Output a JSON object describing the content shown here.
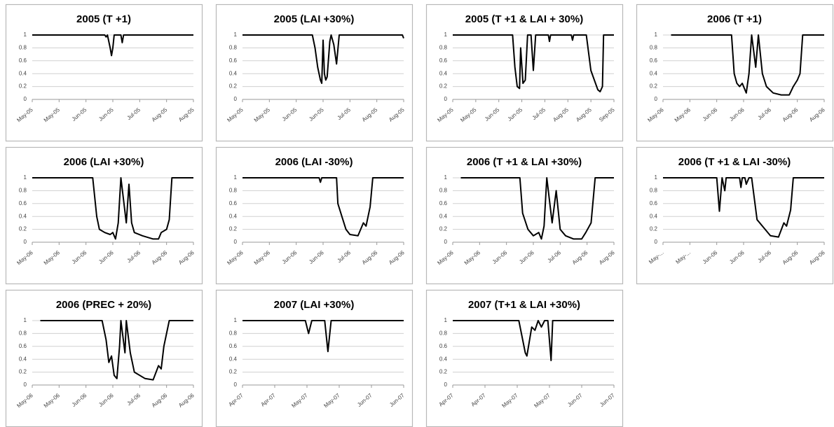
{
  "chart_data": [
    {
      "type": "line",
      "title": "2005 (T +1)",
      "color": "#000000",
      "grid": true,
      "ylim": [
        0,
        1
      ],
      "yticks": [
        0,
        0.2,
        0.4,
        0.6,
        0.8,
        1
      ],
      "xlim": [
        0,
        6
      ],
      "xticks": [
        {
          "value": 0,
          "label": "May-05"
        },
        {
          "value": 1,
          "label": "May-05"
        },
        {
          "value": 2,
          "label": "Jun-05"
        },
        {
          "value": 3,
          "label": "Jun-05"
        },
        {
          "value": 4,
          "label": "Jul-05"
        },
        {
          "value": 5,
          "label": "Aug-05"
        },
        {
          "value": 6,
          "label": "Aug-05"
        }
      ],
      "x": [
        0,
        2.7,
        2.75,
        2.8,
        2.9,
        2.95,
        3.0,
        3.05,
        3.3,
        3.35,
        3.4,
        6
      ],
      "values": [
        1,
        1,
        0.97,
        1,
        0.8,
        0.68,
        0.8,
        1,
        1,
        0.88,
        1,
        1
      ]
    },
    {
      "type": "line",
      "title": "2005 (LAI +30%)",
      "color": "#000000",
      "grid": true,
      "ylim": [
        0,
        1
      ],
      "yticks": [
        0,
        0.2,
        0.4,
        0.6,
        0.8,
        1
      ],
      "xlim": [
        0,
        6
      ],
      "xticks": [
        {
          "value": 0,
          "label": "May-05"
        },
        {
          "value": 1,
          "label": "May-05"
        },
        {
          "value": 2,
          "label": "Jun-05"
        },
        {
          "value": 3,
          "label": "Jun-05"
        },
        {
          "value": 4,
          "label": "Jul-05"
        },
        {
          "value": 5,
          "label": "Aug-05"
        },
        {
          "value": 6,
          "label": "Aug-05"
        }
      ],
      "x": [
        0,
        2.6,
        2.7,
        2.8,
        2.9,
        2.95,
        3.0,
        3.05,
        3.1,
        3.15,
        3.25,
        3.3,
        3.4,
        3.5,
        3.6,
        5.95,
        6
      ],
      "values": [
        1,
        1,
        0.8,
        0.5,
        0.3,
        0.25,
        0.92,
        0.4,
        0.3,
        0.35,
        0.9,
        1,
        0.85,
        0.55,
        1,
        1,
        0.95
      ]
    },
    {
      "type": "line",
      "title": "2005 (T +1 & LAI + 30%)",
      "color": "#000000",
      "grid": true,
      "ylim": [
        0,
        1
      ],
      "yticks": [
        0,
        0.2,
        0.4,
        0.6,
        0.8,
        1
      ],
      "xlim": [
        0,
        7
      ],
      "xticks": [
        {
          "value": 0,
          "label": "May-05"
        },
        {
          "value": 1,
          "label": "May-05"
        },
        {
          "value": 2,
          "label": "Jun-05"
        },
        {
          "value": 3,
          "label": "Jun-05"
        },
        {
          "value": 4,
          "label": "Jul-05"
        },
        {
          "value": 5,
          "label": "Aug-05"
        },
        {
          "value": 6,
          "label": "Aug-05"
        },
        {
          "value": 7,
          "label": "Sep-05"
        }
      ],
      "x": [
        0,
        2.6,
        2.7,
        2.8,
        2.9,
        2.95,
        3.05,
        3.15,
        3.25,
        3.4,
        3.5,
        3.6,
        4.15,
        4.2,
        4.25,
        5.15,
        5.2,
        5.25,
        5.8,
        6.0,
        6.3,
        6.4,
        6.5,
        6.55,
        7
      ],
      "values": [
        1,
        1,
        0.5,
        0.2,
        0.17,
        0.8,
        0.25,
        0.3,
        1,
        1,
        0.45,
        1,
        1,
        0.9,
        1,
        1,
        0.92,
        1,
        1,
        0.45,
        0.15,
        0.12,
        0.2,
        1,
        1
      ]
    },
    {
      "type": "line",
      "title": "2006 (T +1)",
      "color": "#000000",
      "grid": true,
      "ylim": [
        0,
        1
      ],
      "yticks": [
        0,
        0.2,
        0.4,
        0.6,
        0.8,
        1
      ],
      "xlim": [
        0,
        6
      ],
      "xticks": [
        {
          "value": 0,
          "label": "May-06"
        },
        {
          "value": 1,
          "label": "May-06"
        },
        {
          "value": 2,
          "label": "Jun-06"
        },
        {
          "value": 3,
          "label": "Jun-06"
        },
        {
          "value": 4,
          "label": "Jul-06"
        },
        {
          "value": 5,
          "label": "Aug-06"
        },
        {
          "value": 6,
          "label": "Aug-06"
        }
      ],
      "x": [
        0.3,
        2.55,
        2.65,
        2.75,
        2.85,
        2.95,
        3.05,
        3.1,
        3.2,
        3.3,
        3.45,
        3.55,
        3.7,
        3.85,
        4.1,
        4.4,
        4.7,
        4.85,
        5.0,
        5.1,
        5.2,
        6
      ],
      "values": [
        1,
        1,
        0.4,
        0.25,
        0.2,
        0.25,
        0.15,
        0.1,
        0.4,
        1,
        0.5,
        1,
        0.4,
        0.2,
        0.1,
        0.07,
        0.07,
        0.2,
        0.3,
        0.4,
        1,
        1
      ]
    },
    {
      "type": "line",
      "title": "2006 (LAI +30%)",
      "color": "#000000",
      "grid": true,
      "ylim": [
        0,
        1
      ],
      "yticks": [
        0,
        0.2,
        0.4,
        0.6,
        0.8,
        1
      ],
      "xlim": [
        0,
        6
      ],
      "xticks": [
        {
          "value": 0,
          "label": "May-06"
        },
        {
          "value": 1,
          "label": "May-06"
        },
        {
          "value": 2,
          "label": "Jun-06"
        },
        {
          "value": 3,
          "label": "Jun-06"
        },
        {
          "value": 4,
          "label": "Jul-06"
        },
        {
          "value": 5,
          "label": "Aug-06"
        },
        {
          "value": 6,
          "label": "Aug-06"
        }
      ],
      "x": [
        0,
        2.25,
        2.4,
        2.5,
        2.7,
        2.9,
        3.0,
        3.1,
        3.2,
        3.3,
        3.5,
        3.6,
        3.7,
        3.8,
        4.1,
        4.5,
        4.7,
        4.8,
        5.0,
        5.1,
        5.2,
        6
      ],
      "values": [
        1,
        1,
        0.4,
        0.2,
        0.15,
        0.12,
        0.15,
        0.05,
        0.3,
        1,
        0.3,
        0.9,
        0.3,
        0.15,
        0.1,
        0.05,
        0.05,
        0.15,
        0.2,
        0.35,
        1,
        1
      ]
    },
    {
      "type": "line",
      "title": "2006 (LAI -30%)",
      "color": "#000000",
      "grid": true,
      "ylim": [
        0,
        1
      ],
      "yticks": [
        0,
        0.2,
        0.4,
        0.6,
        0.8,
        1
      ],
      "xlim": [
        0,
        6
      ],
      "xticks": [
        {
          "value": 0,
          "label": "May-06"
        },
        {
          "value": 1,
          "label": "May-06"
        },
        {
          "value": 2,
          "label": "Jun-06"
        },
        {
          "value": 3,
          "label": "Jun-06"
        },
        {
          "value": 4,
          "label": "Jul-06"
        },
        {
          "value": 5,
          "label": "Aug-06"
        },
        {
          "value": 6,
          "label": "Aug-06"
        }
      ],
      "x": [
        0,
        2.85,
        2.9,
        2.95,
        3.5,
        3.55,
        3.7,
        3.85,
        4.0,
        4.3,
        4.5,
        4.6,
        4.75,
        4.85,
        6
      ],
      "values": [
        1,
        1,
        0.93,
        1,
        1,
        0.6,
        0.4,
        0.2,
        0.12,
        0.1,
        0.3,
        0.25,
        0.55,
        1,
        1
      ]
    },
    {
      "type": "line",
      "title": "2006 (T +1 & LAI +30%)",
      "color": "#000000",
      "grid": true,
      "ylim": [
        0,
        1
      ],
      "yticks": [
        0,
        0.2,
        0.4,
        0.6,
        0.8,
        1
      ],
      "xlim": [
        0,
        6
      ],
      "xticks": [
        {
          "value": 0,
          "label": "May-06"
        },
        {
          "value": 1,
          "label": "May-06"
        },
        {
          "value": 2,
          "label": "Jun-06"
        },
        {
          "value": 3,
          "label": "Jun-06"
        },
        {
          "value": 4,
          "label": "Jul-06"
        },
        {
          "value": 5,
          "label": "Aug-06"
        },
        {
          "value": 6,
          "label": "Aug-06"
        }
      ],
      "x": [
        0.3,
        2.5,
        2.6,
        2.8,
        3.0,
        3.2,
        3.3,
        3.4,
        3.5,
        3.7,
        3.85,
        4.0,
        4.2,
        4.5,
        4.8,
        4.95,
        5.15,
        5.3,
        6
      ],
      "values": [
        1,
        1,
        0.45,
        0.2,
        0.1,
        0.15,
        0.05,
        0.25,
        1,
        0.3,
        0.8,
        0.2,
        0.1,
        0.05,
        0.05,
        0.15,
        0.3,
        1,
        1
      ]
    },
    {
      "type": "line",
      "title": "2006 (T +1 & LAI -30%)",
      "color": "#000000",
      "grid": true,
      "ylim": [
        0,
        1
      ],
      "yticks": [
        0,
        0.2,
        0.4,
        0.6,
        0.8,
        1
      ],
      "xlim": [
        0,
        6
      ],
      "xticks": [
        {
          "value": 0,
          "label": "May-..."
        },
        {
          "value": 1,
          "label": "May-..."
        },
        {
          "value": 2,
          "label": "Jun-06"
        },
        {
          "value": 3,
          "label": "Jun-06"
        },
        {
          "value": 4,
          "label": "Jul-06"
        },
        {
          "value": 5,
          "label": "Aug-06"
        },
        {
          "value": 6,
          "label": "Aug-06"
        }
      ],
      "x": [
        0,
        2.0,
        2.1,
        2.2,
        2.3,
        2.35,
        2.85,
        2.9,
        2.95,
        3.05,
        3.1,
        3.2,
        3.3,
        3.5,
        3.8,
        4.0,
        4.3,
        4.5,
        4.6,
        4.75,
        4.85,
        6
      ],
      "values": [
        1,
        1,
        0.48,
        1,
        0.8,
        1,
        1,
        0.85,
        1,
        1,
        0.9,
        1,
        1,
        0.35,
        0.2,
        0.1,
        0.08,
        0.3,
        0.25,
        0.5,
        1,
        1
      ]
    },
    {
      "type": "line",
      "title": "2006 (PREC + 20%)",
      "color": "#000000",
      "grid": true,
      "ylim": [
        0,
        1
      ],
      "yticks": [
        0,
        0.2,
        0.4,
        0.6,
        0.8,
        1
      ],
      "xlim": [
        0,
        6
      ],
      "xticks": [
        {
          "value": 0,
          "label": "May-06"
        },
        {
          "value": 1,
          "label": "May-06"
        },
        {
          "value": 2,
          "label": "Jun-06"
        },
        {
          "value": 3,
          "label": "Jun-06"
        },
        {
          "value": 4,
          "label": "Jul-06"
        },
        {
          "value": 5,
          "label": "Aug-06"
        },
        {
          "value": 6,
          "label": "Aug-06"
        }
      ],
      "x": [
        0.3,
        2.6,
        2.75,
        2.85,
        2.95,
        3.05,
        3.15,
        3.25,
        3.3,
        3.45,
        3.5,
        3.65,
        3.8,
        4.2,
        4.5,
        4.7,
        4.8,
        4.9,
        5.1,
        6
      ],
      "values": [
        1,
        1,
        0.7,
        0.35,
        0.45,
        0.15,
        0.1,
        0.6,
        1,
        0.5,
        1,
        0.5,
        0.2,
        0.1,
        0.08,
        0.3,
        0.25,
        0.6,
        1,
        1
      ]
    },
    {
      "type": "line",
      "title": "2007 (LAI +30%)",
      "color": "#000000",
      "grid": true,
      "ylim": [
        0,
        1
      ],
      "yticks": [
        0,
        0.2,
        0.4,
        0.6,
        0.8,
        1
      ],
      "xlim": [
        0,
        5
      ],
      "xticks": [
        {
          "value": 0,
          "label": "Apr-07"
        },
        {
          "value": 1,
          "label": "Apr-07"
        },
        {
          "value": 2,
          "label": "May-07"
        },
        {
          "value": 3,
          "label": "May-07"
        },
        {
          "value": 4,
          "label": "Jun-07"
        },
        {
          "value": 5,
          "label": "Jun-07"
        }
      ],
      "x": [
        0,
        1.95,
        2.05,
        2.15,
        2.55,
        2.65,
        2.75,
        5
      ],
      "values": [
        1,
        1,
        0.8,
        1,
        1,
        0.52,
        1,
        1
      ]
    },
    {
      "type": "line",
      "title": "2007 (T+1 & LAI +30%)",
      "color": "#000000",
      "grid": true,
      "ylim": [
        0,
        1
      ],
      "yticks": [
        0,
        0.2,
        0.4,
        0.6,
        0.8,
        1
      ],
      "xlim": [
        0,
        5
      ],
      "xticks": [
        {
          "value": 0,
          "label": "Apr-07"
        },
        {
          "value": 1,
          "label": "Apr-07"
        },
        {
          "value": 2,
          "label": "May-07"
        },
        {
          "value": 3,
          "label": "May-07"
        },
        {
          "value": 4,
          "label": "Jun-07"
        },
        {
          "value": 5,
          "label": "Jun-07"
        }
      ],
      "x": [
        0,
        2.05,
        2.25,
        2.3,
        2.45,
        2.55,
        2.65,
        2.75,
        2.85,
        2.95,
        3.05,
        3.1,
        5
      ],
      "values": [
        1,
        1,
        0.5,
        0.45,
        0.9,
        0.85,
        1,
        0.9,
        1,
        1,
        0.38,
        1,
        1
      ]
    }
  ]
}
